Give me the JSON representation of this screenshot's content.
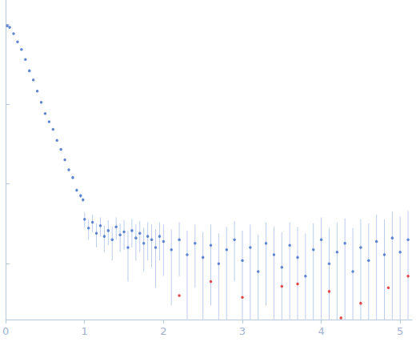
{
  "chart_data": {
    "type": "scatter",
    "log": "y",
    "grid": false,
    "tick_labels": "x",
    "xlim": [
      0,
      5.15
    ],
    "xticks": [
      0,
      1,
      2,
      3,
      4,
      5
    ],
    "ylim": [
      0.0002,
      2
    ],
    "yticks": [
      0.001,
      0.01,
      0.1,
      1
    ],
    "series": [
      {
        "color": "#3d6cc4",
        "marker": "circle",
        "x": [
          0.02,
          0.05,
          0.1,
          0.15,
          0.2,
          0.25,
          0.3,
          0.35,
          0.4,
          0.45,
          0.5,
          0.55,
          0.6,
          0.65,
          0.7,
          0.75,
          0.8,
          0.85,
          0.9,
          0.95,
          0.98,
          1.0,
          1.05,
          1.1,
          1.15,
          1.2,
          1.25,
          1.3,
          1.35,
          1.4,
          1.45,
          1.5,
          1.55,
          1.6,
          1.65,
          1.7,
          1.75,
          1.8,
          1.85,
          1.9,
          1.95,
          2.0,
          2.1,
          2.2,
          2.3,
          2.4,
          2.5,
          2.6,
          2.7,
          2.8,
          2.9,
          3.0,
          3.1,
          3.2,
          3.3,
          3.4,
          3.5,
          3.6,
          3.7,
          3.8,
          3.9,
          4.0,
          4.1,
          4.2,
          4.3,
          4.4,
          4.5,
          4.6,
          4.7,
          4.8,
          4.9,
          5.0,
          5.1
        ],
        "values": [
          0.95,
          0.91,
          0.76,
          0.6,
          0.48,
          0.36,
          0.26,
          0.2,
          0.145,
          0.105,
          0.076,
          0.06,
          0.048,
          0.035,
          0.027,
          0.02,
          0.015,
          0.012,
          0.0083,
          0.0071,
          0.0063,
          0.0036,
          0.0028,
          0.0033,
          0.0024,
          0.003,
          0.0022,
          0.0026,
          0.002,
          0.0029,
          0.0023,
          0.0025,
          0.0016,
          0.0026,
          0.0021,
          0.0024,
          0.0018,
          0.0022,
          0.002,
          0.0016,
          0.0022,
          0.0019,
          0.0015,
          0.002,
          0.0013,
          0.0018,
          0.0012,
          0.0017,
          0.001,
          0.0015,
          0.002,
          0.0011,
          0.0016,
          0.0008,
          0.0018,
          0.0013,
          0.0009,
          0.0017,
          0.0012,
          0.0007,
          0.0015,
          0.002,
          0.001,
          0.0014,
          0.0018,
          0.0008,
          0.0016,
          0.0011,
          0.0019,
          0.0013,
          0.0021,
          0.0014,
          0.002
        ],
        "errors": [
          0.002,
          0.002,
          0.002,
          0.002,
          0.002,
          0.002,
          0.002,
          0.001,
          0.001,
          0.001,
          0.001,
          0.001,
          0.001,
          0.0008,
          0.0007,
          0.0006,
          0.0005,
          0.0005,
          0.0004,
          0.0004,
          0.0004,
          0.0008,
          0.0008,
          0.0008,
          0.0008,
          0.0008,
          0.0008,
          0.0009,
          0.0009,
          0.0009,
          0.0009,
          0.001,
          0.001,
          0.001,
          0.001,
          0.001,
          0.001,
          0.0011,
          0.0011,
          0.0011,
          0.0011,
          0.0012,
          0.0012,
          0.0013,
          0.0013,
          0.0013,
          0.0013,
          0.0014,
          0.0014,
          0.0014,
          0.0014,
          0.0015,
          0.0015,
          0.0015,
          0.0015,
          0.0016,
          0.0016,
          0.0016,
          0.0017,
          0.0017,
          0.0017,
          0.0018,
          0.0018,
          0.0019,
          0.0019,
          0.002,
          0.002,
          0.0021,
          0.0022,
          0.0023,
          0.0024,
          0.0025,
          0.0026
        ]
      },
      {
        "color": "#e02020",
        "marker": "circle",
        "x": [
          2.2,
          2.6,
          3.0,
          3.5,
          3.7,
          4.1,
          4.25,
          4.5,
          4.85,
          5.1
        ],
        "values": [
          0.0004,
          0.0006,
          0.00038,
          0.00052,
          0.00056,
          0.00045,
          0.00021,
          0.00032,
          0.0005,
          0.0007
        ]
      }
    ]
  }
}
